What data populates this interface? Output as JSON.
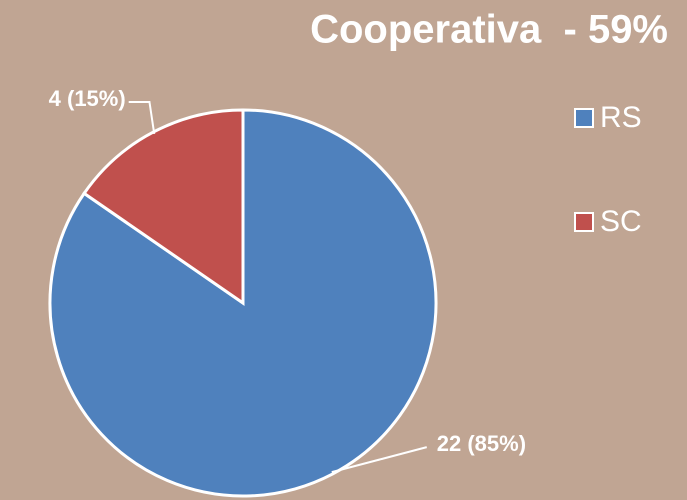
{
  "chart_data": {
    "type": "pie",
    "title": "Cooperativa  - 59%",
    "categories": [
      "RS",
      "SC"
    ],
    "values": [
      22,
      4
    ],
    "value_labels": [
      "22 (85%)",
      "4 (15%)"
    ],
    "colors": [
      "#4f81bd",
      "#c0504d"
    ],
    "legend": "right"
  }
}
